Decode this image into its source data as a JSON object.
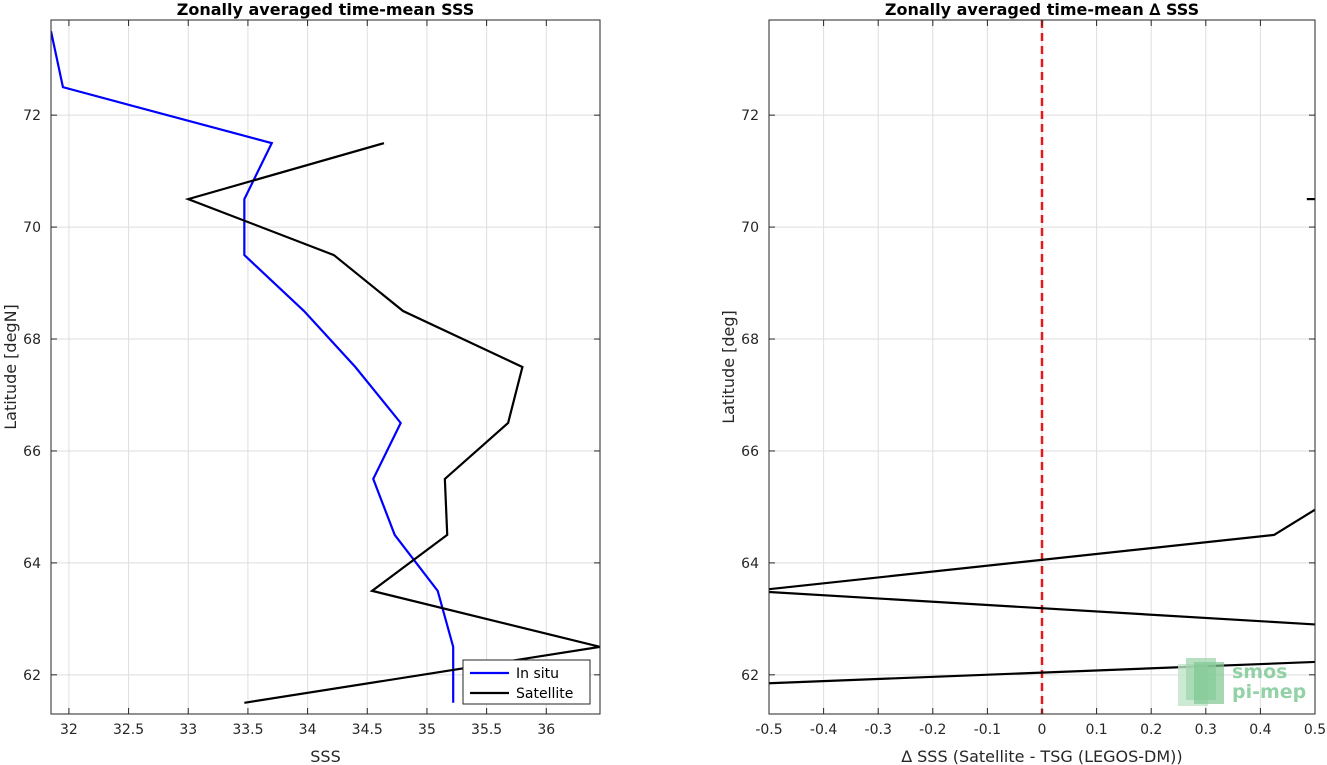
{
  "chart_data": [
    {
      "type": "line",
      "title": "Zonally averaged time-mean SSS",
      "xlabel": "SSS",
      "ylabel": "Latitude [degN]",
      "xlim": [
        31.85,
        36.45
      ],
      "ylim": [
        61.3,
        73.7
      ],
      "xticks": [
        32,
        32.5,
        33,
        33.5,
        34,
        34.5,
        35,
        35.5,
        36
      ],
      "xtick_labels": [
        "32",
        "32.5",
        "33",
        "33.5",
        "34",
        "34.5",
        "35",
        "35.5",
        "36"
      ],
      "yticks": [
        62,
        64,
        66,
        68,
        70,
        72
      ],
      "ytick_labels": [
        "62",
        "64",
        "66",
        "68",
        "70",
        "72"
      ],
      "grid": true,
      "legend": "bottom-right",
      "series": [
        {
          "name": "In situ",
          "color": "#0000ff",
          "x": [
            31.85,
            31.95,
            33.7,
            33.47,
            33.47,
            33.97,
            34.4,
            34.78,
            34.55,
            34.73,
            35.09,
            35.22,
            35.22
          ],
          "y": [
            73.5,
            72.5,
            71.5,
            70.5,
            69.5,
            68.5,
            67.5,
            66.5,
            65.5,
            64.5,
            63.5,
            62.5,
            61.5
          ]
        },
        {
          "name": "Satellite",
          "color": "#000000",
          "x": [
            34.64,
            33.0,
            34.22,
            34.8,
            35.8,
            35.68,
            35.15,
            35.17,
            34.54,
            36.45,
            33.47
          ],
          "y": [
            71.5,
            70.5,
            69.5,
            68.5,
            67.5,
            66.5,
            65.5,
            64.5,
            63.5,
            62.5,
            61.5
          ]
        }
      ]
    },
    {
      "type": "line",
      "title": "Zonally averaged time-mean ∆ SSS",
      "xlabel": "∆ SSS (Satellite - TSG (LEGOS-DM))",
      "ylabel": "Latitude [deg]",
      "xlim": [
        -0.5,
        0.5
      ],
      "ylim": [
        61.3,
        73.7
      ],
      "xticks": [
        -0.5,
        -0.4,
        -0.3,
        -0.2,
        -0.1,
        0,
        0.1,
        0.2,
        0.3,
        0.4,
        0.5
      ],
      "xtick_labels": [
        "-0.5",
        "-0.4",
        "-0.3",
        "-0.2",
        "-0.1",
        "0",
        "0.1",
        "0.2",
        "0.3",
        "0.4",
        "0.5"
      ],
      "yticks": [
        62,
        64,
        66,
        68,
        70,
        72
      ],
      "ytick_labels": [
        "62",
        "64",
        "66",
        "68",
        "70",
        "72"
      ],
      "grid": true,
      "reference_line": {
        "x": 0,
        "color": "#e31a1c",
        "style": "dashed"
      },
      "series": [
        {
          "color": "#000000",
          "x": [
            0.5,
            0.485
          ],
          "y": [
            70.5,
            70.5
          ]
        },
        {
          "color": "#000000",
          "x": [
            0.5,
            0.425,
            -0.5
          ],
          "y": [
            64.95,
            64.5,
            63.53
          ]
        },
        {
          "color": "#000000",
          "x": [
            -0.5,
            0.5
          ],
          "y": [
            63.48,
            62.9
          ]
        },
        {
          "color": "#000000",
          "x": [
            -0.5,
            0.5
          ],
          "y": [
            61.85,
            62.23
          ]
        }
      ]
    }
  ],
  "watermark": {
    "line1": "smos",
    "line2": "pi-mep",
    "color": "#6fc28a"
  }
}
